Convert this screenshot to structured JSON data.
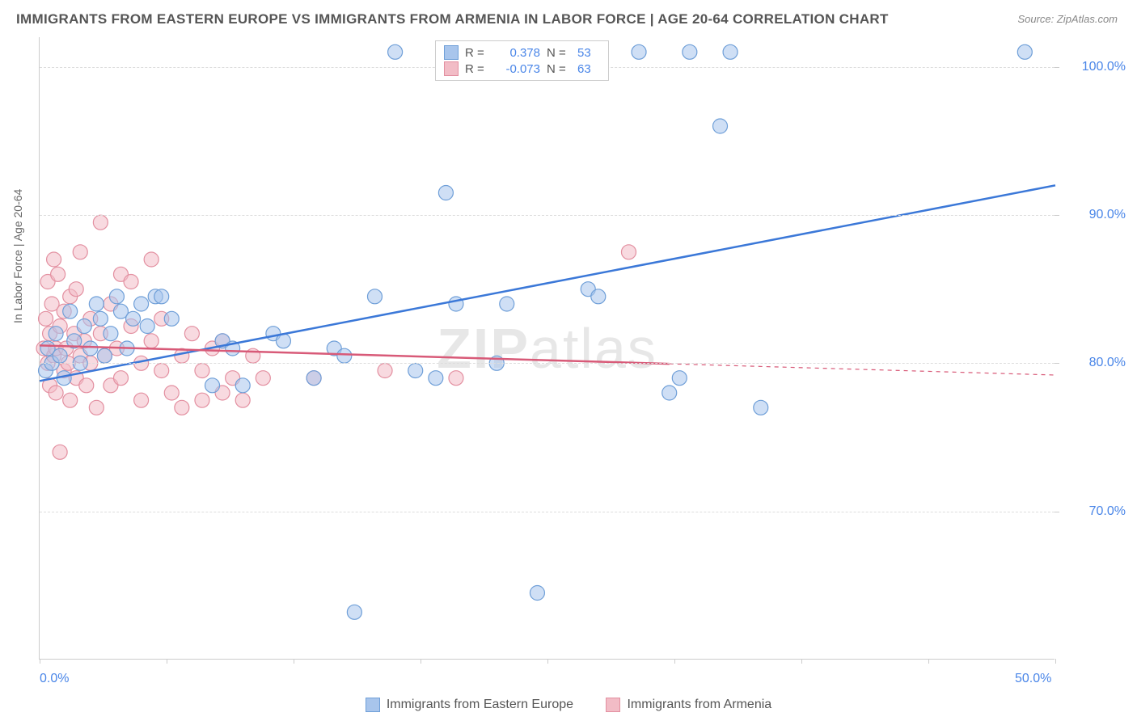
{
  "title": "IMMIGRANTS FROM EASTERN EUROPE VS IMMIGRANTS FROM ARMENIA IN LABOR FORCE | AGE 20-64 CORRELATION CHART",
  "source": "Source: ZipAtlas.com",
  "ylabel": "In Labor Force | Age 20-64",
  "watermark_a": "ZIP",
  "watermark_b": "atlas",
  "chart": {
    "type": "scatter-with-regression",
    "background_color": "#ffffff",
    "grid_color": "#dddddd",
    "axis_color": "#cccccc",
    "tick_label_color": "#4a86e8",
    "axis_label_color": "#666666",
    "title_color": "#555555",
    "title_fontsize": 17,
    "label_fontsize": 14,
    "tick_fontsize": 16,
    "xlim": [
      0,
      50
    ],
    "ylim": [
      60,
      102
    ],
    "x_ticks": [
      0,
      50
    ],
    "x_tick_labels": [
      "0.0%",
      "50.0%"
    ],
    "x_minor_ticks": [
      0,
      6.25,
      12.5,
      18.75,
      25,
      31.25,
      37.5,
      43.75,
      50
    ],
    "y_ticks": [
      70,
      80,
      90,
      100
    ],
    "y_tick_labels": [
      "70.0%",
      "80.0%",
      "90.0%",
      "100.0%"
    ],
    "marker_radius": 9,
    "marker_opacity": 0.55,
    "marker_stroke_width": 1.2,
    "line_width": 2.5,
    "series": [
      {
        "name": "Immigrants from Eastern Europe",
        "color_fill": "#a8c5ec",
        "color_stroke": "#6f9fd8",
        "line_color": "#3b78d8",
        "r": "0.378",
        "n": "53",
        "regression": {
          "x1": 0,
          "y1": 78.8,
          "x2": 50,
          "y2": 92.0,
          "solid_until_x": 50
        },
        "points": [
          [
            0.3,
            79.5
          ],
          [
            0.4,
            81.0
          ],
          [
            0.6,
            80.0
          ],
          [
            0.8,
            82.0
          ],
          [
            1.0,
            80.5
          ],
          [
            1.2,
            79.0
          ],
          [
            1.5,
            83.5
          ],
          [
            1.7,
            81.5
          ],
          [
            2.0,
            80.0
          ],
          [
            2.2,
            82.5
          ],
          [
            2.5,
            81.0
          ],
          [
            2.8,
            84.0
          ],
          [
            3.0,
            83.0
          ],
          [
            3.2,
            80.5
          ],
          [
            3.5,
            82.0
          ],
          [
            3.8,
            84.5
          ],
          [
            4.0,
            83.5
          ],
          [
            4.3,
            81.0
          ],
          [
            4.6,
            83.0
          ],
          [
            5.0,
            84.0
          ],
          [
            5.3,
            82.5
          ],
          [
            5.7,
            84.5
          ],
          [
            6.0,
            84.5
          ],
          [
            6.5,
            83.0
          ],
          [
            8.5,
            78.5
          ],
          [
            9.0,
            81.5
          ],
          [
            9.5,
            81.0
          ],
          [
            10.0,
            78.5
          ],
          [
            11.5,
            82.0
          ],
          [
            12.0,
            81.5
          ],
          [
            13.5,
            79.0
          ],
          [
            14.5,
            81.0
          ],
          [
            15.0,
            80.5
          ],
          [
            15.5,
            63.2
          ],
          [
            16.5,
            84.5
          ],
          [
            17.5,
            101.0
          ],
          [
            18.5,
            79.5
          ],
          [
            19.5,
            79.0
          ],
          [
            20.0,
            91.5
          ],
          [
            20.5,
            84.0
          ],
          [
            22.5,
            80.0
          ],
          [
            23.0,
            84.0
          ],
          [
            24.5,
            64.5
          ],
          [
            27.0,
            85.0
          ],
          [
            27.5,
            84.5
          ],
          [
            29.5,
            101.0
          ],
          [
            31.0,
            78.0
          ],
          [
            31.5,
            79.0
          ],
          [
            32.0,
            101.0
          ],
          [
            33.5,
            96.0
          ],
          [
            34.0,
            101.0
          ],
          [
            35.5,
            77.0
          ],
          [
            48.5,
            101.0
          ]
        ]
      },
      {
        "name": "Immigrants from Armenia",
        "color_fill": "#f2bcc6",
        "color_stroke": "#e38fa0",
        "line_color": "#d85a78",
        "r": "-0.073",
        "n": "63",
        "regression": {
          "x1": 0,
          "y1": 81.2,
          "x2": 50,
          "y2": 79.2,
          "solid_until_x": 31
        },
        "points": [
          [
            0.2,
            81.0
          ],
          [
            0.3,
            83.0
          ],
          [
            0.4,
            80.0
          ],
          [
            0.4,
            85.5
          ],
          [
            0.5,
            82.0
          ],
          [
            0.5,
            78.5
          ],
          [
            0.6,
            84.0
          ],
          [
            0.7,
            80.5
          ],
          [
            0.7,
            87.0
          ],
          [
            0.8,
            81.0
          ],
          [
            0.8,
            78.0
          ],
          [
            0.9,
            86.0
          ],
          [
            1.0,
            82.5
          ],
          [
            1.0,
            74.0
          ],
          [
            1.2,
            79.5
          ],
          [
            1.2,
            83.5
          ],
          [
            1.3,
            81.0
          ],
          [
            1.4,
            80.0
          ],
          [
            1.5,
            84.5
          ],
          [
            1.5,
            77.5
          ],
          [
            1.7,
            82.0
          ],
          [
            1.8,
            85.0
          ],
          [
            1.8,
            79.0
          ],
          [
            2.0,
            80.5
          ],
          [
            2.0,
            87.5
          ],
          [
            2.2,
            81.5
          ],
          [
            2.3,
            78.5
          ],
          [
            2.5,
            83.0
          ],
          [
            2.5,
            80.0
          ],
          [
            2.8,
            77.0
          ],
          [
            3.0,
            89.5
          ],
          [
            3.0,
            82.0
          ],
          [
            3.2,
            80.5
          ],
          [
            3.5,
            84.0
          ],
          [
            3.5,
            78.5
          ],
          [
            3.8,
            81.0
          ],
          [
            4.0,
            86.0
          ],
          [
            4.0,
            79.0
          ],
          [
            4.5,
            82.5
          ],
          [
            4.5,
            85.5
          ],
          [
            5.0,
            80.0
          ],
          [
            5.0,
            77.5
          ],
          [
            5.5,
            87.0
          ],
          [
            5.5,
            81.5
          ],
          [
            6.0,
            79.5
          ],
          [
            6.0,
            83.0
          ],
          [
            6.5,
            78.0
          ],
          [
            7.0,
            80.5
          ],
          [
            7.0,
            77.0
          ],
          [
            7.5,
            82.0
          ],
          [
            8.0,
            79.5
          ],
          [
            8.0,
            77.5
          ],
          [
            8.5,
            81.0
          ],
          [
            9.0,
            78.0
          ],
          [
            9.0,
            81.5
          ],
          [
            9.5,
            79.0
          ],
          [
            10.0,
            77.5
          ],
          [
            10.5,
            80.5
          ],
          [
            11.0,
            79.0
          ],
          [
            13.5,
            79.0
          ],
          [
            17.0,
            79.5
          ],
          [
            20.5,
            79.0
          ],
          [
            29.0,
            87.5
          ]
        ]
      }
    ]
  },
  "legend_top_labels": {
    "r": "R =",
    "n": "N ="
  },
  "legend_bottom": [
    {
      "label": "Immigrants from Eastern Europe",
      "fill": "#a8c5ec",
      "stroke": "#6f9fd8"
    },
    {
      "label": "Immigrants from Armenia",
      "fill": "#f2bcc6",
      "stroke": "#e38fa0"
    }
  ]
}
